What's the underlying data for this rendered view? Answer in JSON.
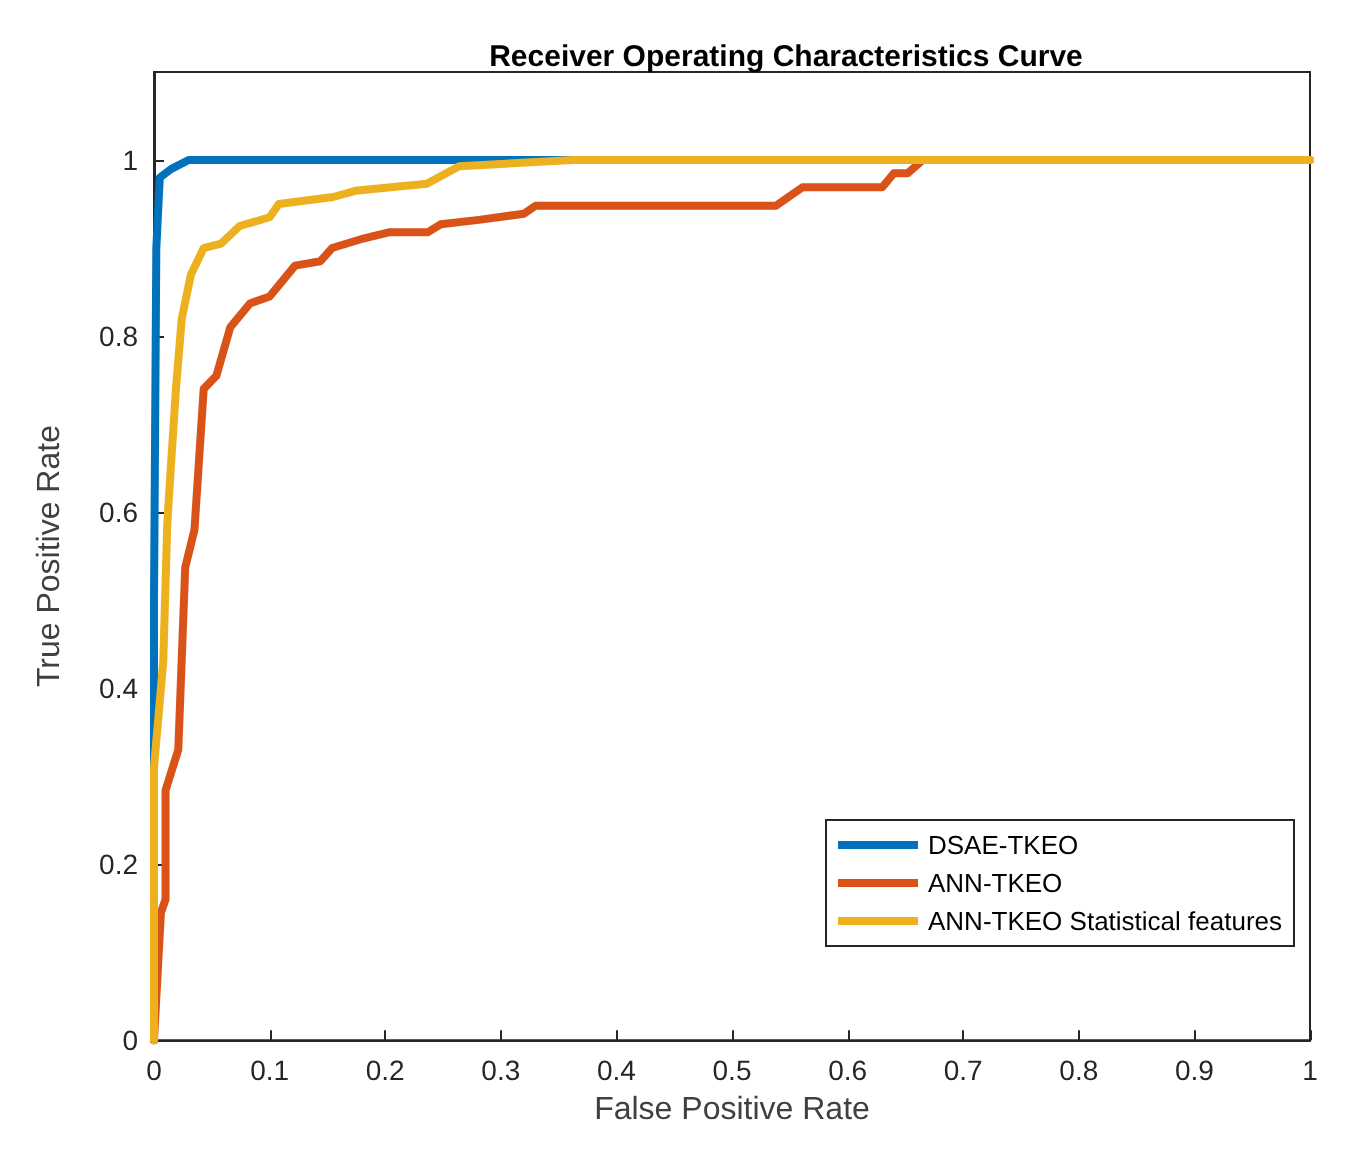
{
  "chart_data": {
    "type": "line",
    "title": "Receiver Operating Characteristics Curve",
    "xlabel": "False Positive Rate",
    "ylabel": "True Positive Rate",
    "xlim": [
      0,
      1
    ],
    "ylim": [
      0,
      1.1
    ],
    "xticks": [
      0,
      0.1,
      0.2,
      0.3,
      0.4,
      0.5,
      0.6,
      0.7,
      0.8,
      0.9,
      1
    ],
    "yticks": [
      0,
      0.2,
      0.4,
      0.6,
      0.8,
      1
    ],
    "grid": false,
    "legend": "bottom right",
    "marker": "none",
    "line_style": "solid",
    "series": [
      {
        "name": "DSAE-TKEO",
        "color": "#0072bd",
        "x": [
          0,
          0,
          0.002,
          0.005,
          0.015,
          0.03,
          0.362
        ],
        "values": [
          0,
          0.5,
          0.9,
          0.98,
          0.99,
          1,
          1
        ]
      },
      {
        "name": "ANN-TKEO",
        "color": "#d95319",
        "x": [
          0,
          0.006,
          0.01,
          0.01,
          0.021,
          0.027,
          0.035,
          0.043,
          0.054,
          0.066,
          0.083,
          0.1,
          0.122,
          0.144,
          0.154,
          0.179,
          0.204,
          0.237,
          0.248,
          0.281,
          0.32,
          0.33,
          0.538,
          0.561,
          0.63,
          0.64,
          0.652,
          0.665,
          1
        ],
        "values": [
          0,
          0.145,
          0.16,
          0.284,
          0.33,
          0.537,
          0.58,
          0.74,
          0.755,
          0.81,
          0.837,
          0.845,
          0.88,
          0.885,
          0.9,
          0.91,
          0.918,
          0.918,
          0.927,
          0.932,
          0.939,
          0.948,
          0.948,
          0.969,
          0.969,
          0.985,
          0.985,
          1,
          1
        ]
      },
      {
        "name": "ANN-TKEO Statistical features",
        "color": "#edb120",
        "x": [
          0,
          0,
          0.008,
          0.0115,
          0.014,
          0.019,
          0.024,
          0.032,
          0.043,
          0.058,
          0.074,
          0.1,
          0.108,
          0.155,
          0.174,
          0.236,
          0.264,
          0.362,
          1
        ],
        "values": [
          0,
          0.31,
          0.43,
          0.587,
          0.64,
          0.74,
          0.82,
          0.87,
          0.9,
          0.905,
          0.925,
          0.935,
          0.95,
          0.958,
          0.965,
          0.973,
          0.993,
          1,
          1
        ]
      }
    ]
  }
}
